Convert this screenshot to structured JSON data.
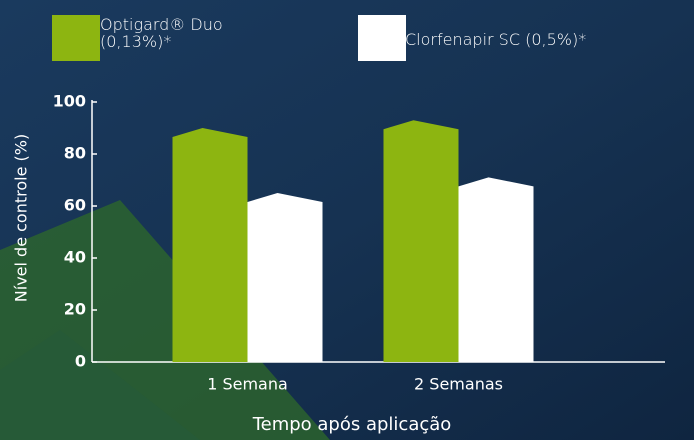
{
  "chart_data": {
    "type": "bar",
    "y_label": "Nível de controle (%)",
    "x_label": "Tempo após aplicação",
    "categories": [
      "1 Semana",
      "2 Semanas"
    ],
    "series": [
      {
        "name": "Optigard® Duo (0,13%)*",
        "color": "#8db511",
        "values": [
          90,
          93
        ]
      },
      {
        "name": "Clorfenapir SC (0,5%)*",
        "color": "#ffffff",
        "values": [
          65,
          71
        ]
      }
    ],
    "ylim": [
      0,
      100
    ],
    "yticks": [
      0,
      20,
      40,
      60,
      80,
      100
    ]
  }
}
